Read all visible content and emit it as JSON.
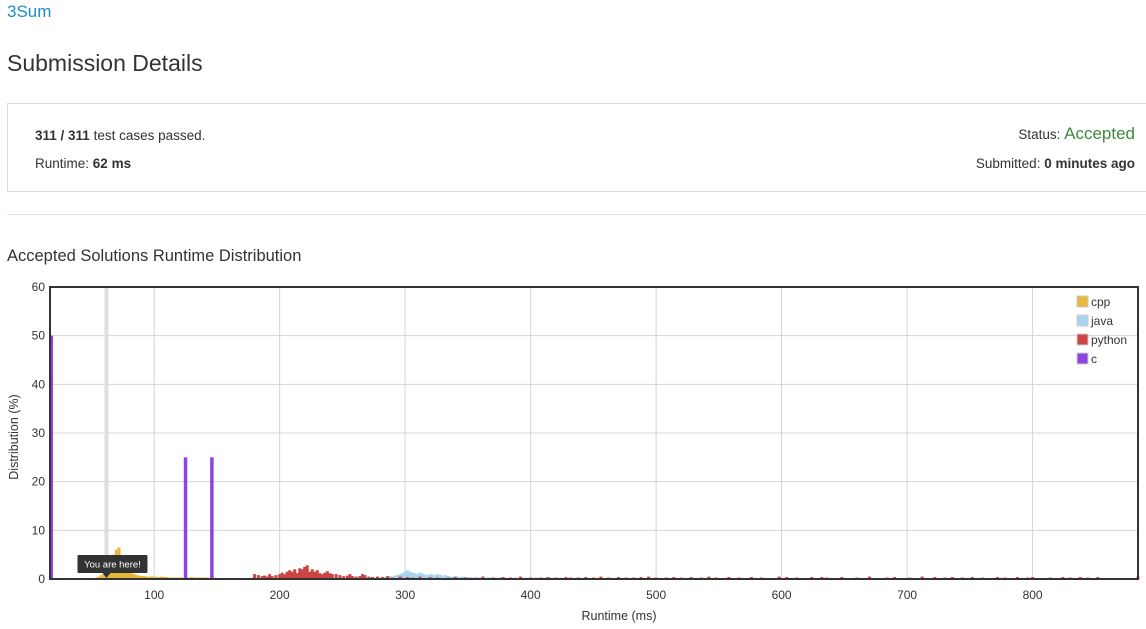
{
  "problem": {
    "title": "3Sum"
  },
  "page": {
    "title": "Submission Details"
  },
  "details": {
    "passed": "311 / 311",
    "passed_suffix": "test cases passed.",
    "runtime_label": "Runtime:",
    "runtime_value": "62 ms",
    "status_label": "Status:",
    "status_value": "Accepted",
    "submitted_label": "Submitted:",
    "submitted_value": "0 minutes ago"
  },
  "section": {
    "title": "Accepted Solutions Runtime Distribution"
  },
  "chart_data": {
    "type": "bar",
    "title": "",
    "xlabel": "Runtime (ms)",
    "ylabel": "Distribution (%)",
    "xlim": [
      17,
      884
    ],
    "ylim": [
      0,
      60
    ],
    "xticks": [
      100,
      200,
      300,
      400,
      500,
      600,
      700,
      800
    ],
    "yticks": [
      0,
      10,
      20,
      30,
      40,
      50,
      60
    ],
    "grid": true,
    "legend_position": "top-right",
    "marker": {
      "x": 62,
      "label": "You are here!"
    },
    "series": [
      {
        "name": "cpp",
        "color": "#e8b838",
        "points": [
          [
            54,
            0.3
          ],
          [
            56,
            0.5
          ],
          [
            58,
            0.8
          ],
          [
            60,
            1.0
          ],
          [
            62,
            1.5
          ],
          [
            64,
            2.5
          ],
          [
            66,
            3.5
          ],
          [
            68,
            5.0
          ],
          [
            70,
            6.0
          ],
          [
            72,
            6.5
          ],
          [
            74,
            4.0
          ],
          [
            76,
            2.5
          ],
          [
            78,
            2.0
          ],
          [
            80,
            1.5
          ],
          [
            82,
            1.2
          ],
          [
            84,
            1.0
          ],
          [
            86,
            0.8
          ],
          [
            88,
            0.7
          ],
          [
            90,
            0.6
          ],
          [
            92,
            0.6
          ],
          [
            94,
            0.5
          ],
          [
            96,
            0.5
          ],
          [
            98,
            0.5
          ],
          [
            100,
            0.5
          ],
          [
            102,
            0.4
          ],
          [
            104,
            0.4
          ],
          [
            106,
            0.5
          ],
          [
            108,
            0.4
          ],
          [
            110,
            0.4
          ],
          [
            112,
            0.3
          ],
          [
            114,
            0.3
          ],
          [
            116,
            0.3
          ],
          [
            118,
            0.3
          ],
          [
            120,
            0.3
          ],
          [
            122,
            0.3
          ],
          [
            126,
            0.3
          ],
          [
            128,
            0.3
          ],
          [
            130,
            0.4
          ],
          [
            132,
            0.3
          ],
          [
            134,
            0.3
          ],
          [
            136,
            0.3
          ],
          [
            138,
            0.3
          ],
          [
            140,
            0.3
          ],
          [
            142,
            0.3
          ],
          [
            146,
            0.3
          ],
          [
            148,
            0.3
          ]
        ]
      },
      {
        "name": "java",
        "color": "#a9d4f0",
        "points": [
          [
            280,
            0.3
          ],
          [
            282,
            0.3
          ],
          [
            284,
            0.4
          ],
          [
            286,
            0.5
          ],
          [
            288,
            0.6
          ],
          [
            290,
            0.5
          ],
          [
            292,
            0.7
          ],
          [
            294,
            0.8
          ],
          [
            296,
            1.0
          ],
          [
            298,
            1.2
          ],
          [
            300,
            1.5
          ],
          [
            302,
            1.8
          ],
          [
            304,
            1.5
          ],
          [
            306,
            1.3
          ],
          [
            308,
            1.2
          ],
          [
            310,
            1.0
          ],
          [
            312,
            1.3
          ],
          [
            314,
            1.1
          ],
          [
            316,
            0.9
          ],
          [
            318,
            0.8
          ],
          [
            320,
            1.0
          ],
          [
            322,
            0.9
          ],
          [
            324,
            0.8
          ],
          [
            326,
            1.0
          ],
          [
            328,
            0.9
          ],
          [
            330,
            0.7
          ],
          [
            332,
            0.8
          ],
          [
            334,
            0.6
          ],
          [
            336,
            0.5
          ],
          [
            338,
            0.5
          ],
          [
            340,
            0.6
          ],
          [
            342,
            0.5
          ],
          [
            344,
            0.4
          ],
          [
            346,
            0.5
          ],
          [
            348,
            0.4
          ],
          [
            350,
            0.4
          ],
          [
            352,
            0.4
          ],
          [
            354,
            0.3
          ],
          [
            356,
            0.3
          ],
          [
            358,
            0.3
          ],
          [
            360,
            0.3
          ],
          [
            362,
            0.3
          ],
          [
            364,
            0.3
          ],
          [
            366,
            0.3
          ],
          [
            368,
            0.3
          ],
          [
            370,
            0.3
          ],
          [
            372,
            0.3
          ],
          [
            374,
            0.3
          ],
          [
            376,
            0.3
          ],
          [
            380,
            0.3
          ],
          [
            384,
            0.3
          ],
          [
            388,
            0.3
          ],
          [
            392,
            0.3
          ],
          [
            396,
            0.3
          ],
          [
            400,
            0.3
          ],
          [
            404,
            0.3
          ],
          [
            408,
            0.3
          ],
          [
            412,
            0.3
          ],
          [
            416,
            0.3
          ],
          [
            420,
            0.3
          ],
          [
            424,
            0.3
          ],
          [
            428,
            0.3
          ]
        ]
      },
      {
        "name": "python",
        "color": "#cc4444",
        "points": [
          [
            180,
            1.0
          ],
          [
            183,
            0.8
          ],
          [
            186,
            0.6
          ],
          [
            188,
            0.7
          ],
          [
            190,
            0.5
          ],
          [
            192,
            1.0
          ],
          [
            194,
            0.6
          ],
          [
            197,
            0.8
          ],
          [
            200,
            1.0
          ],
          [
            202,
            1.3
          ],
          [
            204,
            1.0
          ],
          [
            206,
            1.5
          ],
          [
            208,
            1.8
          ],
          [
            210,
            1.5
          ],
          [
            212,
            2.0
          ],
          [
            214,
            1.2
          ],
          [
            216,
            2.2
          ],
          [
            218,
            2.0
          ],
          [
            220,
            2.5
          ],
          [
            222,
            2.8
          ],
          [
            224,
            1.5
          ],
          [
            226,
            2.0
          ],
          [
            228,
            1.5
          ],
          [
            230,
            1.8
          ],
          [
            232,
            1.2
          ],
          [
            234,
            1.0
          ],
          [
            236,
            1.3
          ],
          [
            238,
            1.6
          ],
          [
            240,
            1.2
          ],
          [
            242,
            1.0
          ],
          [
            245,
            1.0
          ],
          [
            248,
            0.8
          ],
          [
            251,
            0.6
          ],
          [
            254,
            0.7
          ],
          [
            256,
            1.0
          ],
          [
            258,
            0.6
          ],
          [
            261,
            0.5
          ],
          [
            264,
            0.6
          ],
          [
            266,
            1.0
          ],
          [
            268,
            0.8
          ],
          [
            271,
            0.5
          ],
          [
            274,
            0.4
          ],
          [
            278,
            0.5
          ],
          [
            282,
            0.4
          ],
          [
            286,
            0.6
          ],
          [
            290,
            0.3
          ],
          [
            296,
            0.5
          ],
          [
            302,
            0.4
          ],
          [
            306,
            0.3
          ],
          [
            312,
            0.5
          ],
          [
            320,
            0.4
          ],
          [
            326,
            0.3
          ],
          [
            334,
            0.3
          ],
          [
            340,
            0.4
          ],
          [
            348,
            0.3
          ],
          [
            356,
            0.3
          ],
          [
            362,
            0.5
          ],
          [
            370,
            0.3
          ],
          [
            378,
            0.4
          ],
          [
            384,
            0.3
          ],
          [
            392,
            0.5
          ],
          [
            400,
            0.3
          ],
          [
            408,
            0.3
          ],
          [
            414,
            0.4
          ],
          [
            420,
            0.3
          ],
          [
            428,
            0.4
          ],
          [
            432,
            0.3
          ],
          [
            438,
            0.3
          ],
          [
            444,
            0.4
          ],
          [
            450,
            0.3
          ],
          [
            456,
            0.5
          ],
          [
            462,
            0.3
          ],
          [
            470,
            0.4
          ],
          [
            476,
            0.3
          ],
          [
            482,
            0.3
          ],
          [
            488,
            0.4
          ],
          [
            494,
            0.5
          ],
          [
            500,
            0.3
          ],
          [
            508,
            0.3
          ],
          [
            514,
            0.4
          ],
          [
            520,
            0.3
          ],
          [
            528,
            0.4
          ],
          [
            536,
            0.3
          ],
          [
            542,
            0.5
          ],
          [
            548,
            0.3
          ],
          [
            558,
            0.4
          ],
          [
            566,
            0.3
          ],
          [
            576,
            0.4
          ],
          [
            584,
            0.3
          ],
          [
            598,
            0.5
          ],
          [
            604,
            0.4
          ],
          [
            612,
            0.3
          ],
          [
            624,
            0.4
          ],
          [
            632,
            0.4
          ],
          [
            636,
            0.3
          ],
          [
            648,
            0.4
          ],
          [
            660,
            0.3
          ],
          [
            670,
            0.5
          ],
          [
            684,
            0.3
          ],
          [
            690,
            0.4
          ],
          [
            702,
            0.3
          ],
          [
            712,
            0.5
          ],
          [
            722,
            0.4
          ],
          [
            730,
            0.3
          ],
          [
            736,
            0.4
          ],
          [
            744,
            0.3
          ],
          [
            752,
            0.4
          ],
          [
            760,
            0.3
          ],
          [
            772,
            0.4
          ],
          [
            778,
            0.3
          ],
          [
            788,
            0.4
          ],
          [
            796,
            0.3
          ],
          [
            800,
            0.4
          ],
          [
            814,
            0.3
          ],
          [
            824,
            0.4
          ],
          [
            830,
            0.3
          ],
          [
            838,
            0.4
          ],
          [
            844,
            0.3
          ],
          [
            852,
            0.4
          ],
          [
            884,
            0.5
          ]
        ]
      },
      {
        "name": "c",
        "color": "#8e44dd",
        "points": [
          [
            18,
            50
          ],
          [
            125,
            25
          ],
          [
            146,
            25
          ]
        ]
      }
    ]
  }
}
